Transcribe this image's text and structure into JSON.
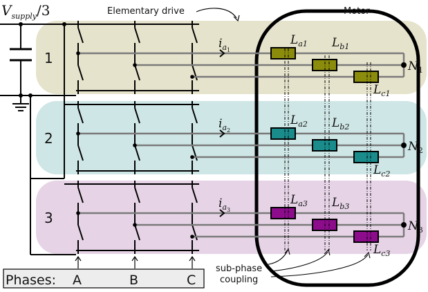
{
  "supply_label": {
    "main": "V",
    "sub": "supply",
    "tail": "/3"
  },
  "elementary_drive_label": "Elementary drive",
  "motor_label": "Motor",
  "drives": [
    {
      "number": "1",
      "band_color": "#e6e3cc",
      "coil_color": "#8c8c0c",
      "current": {
        "main": "i",
        "sub": "a",
        "subsub": "1"
      },
      "coils": [
        {
          "main": "L",
          "sub": "a1"
        },
        {
          "main": "L",
          "sub": "b1"
        },
        {
          "main": "L",
          "sub": "c1"
        }
      ],
      "neutral": {
        "main": "N",
        "sub": "1"
      }
    },
    {
      "number": "2",
      "band_color": "#cfe6e6",
      "coil_color": "#1a8c8c",
      "current": {
        "main": "i",
        "sub": "a",
        "subsub": "2"
      },
      "coils": [
        {
          "main": "L",
          "sub": "a2"
        },
        {
          "main": "L",
          "sub": "b2"
        },
        {
          "main": "L",
          "sub": "c2"
        }
      ],
      "neutral": {
        "main": "N",
        "sub": "2"
      }
    },
    {
      "number": "3",
      "band_color": "#e6d4e6",
      "coil_color": "#8c0c8c",
      "current": {
        "main": "i",
        "sub": "a",
        "subsub": "3"
      },
      "coils": [
        {
          "main": "L",
          "sub": "a3"
        },
        {
          "main": "L",
          "sub": "b3"
        },
        {
          "main": "L",
          "sub": "c3"
        }
      ],
      "neutral": {
        "main": "N",
        "sub": "3"
      }
    }
  ],
  "phases": {
    "label": "Phases:",
    "names": [
      "A",
      "B",
      "C"
    ]
  },
  "coupling_label": [
    "sub-phase",
    "coupling"
  ],
  "colors": {
    "wire": "#7a7a7a",
    "line": "#000000"
  }
}
